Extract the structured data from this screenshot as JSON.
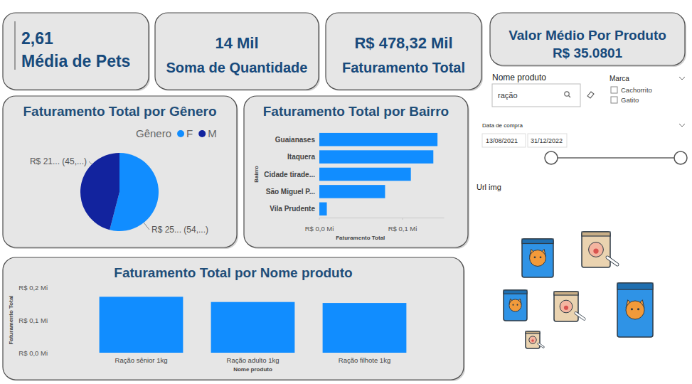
{
  "cards": [
    {
      "value": "2,61",
      "label": "Média de Pets"
    },
    {
      "value": "14 Mil",
      "label": "Soma de Quantidade"
    },
    {
      "value": "R$ 478,32 Mil",
      "label": "Faturamento Total"
    },
    {
      "label": "Valor Médio Por Produto",
      "value": "R$ 35.0801"
    }
  ],
  "slicers": {
    "nome_produto": {
      "title": "Nome produto",
      "search": "ração"
    },
    "marca": {
      "title": "Marca",
      "options": [
        "Cachorrito",
        "Gatito"
      ]
    },
    "data_compra": {
      "title": "Data de compra",
      "start": "13/08/2021",
      "end": "31/12/2022"
    },
    "url_img": {
      "title": "Url img"
    }
  },
  "chart_data": [
    {
      "type": "pie",
      "title": "Faturamento Total por Gênero",
      "legend_title": "Gênero",
      "legend": "top",
      "categories": [
        "F",
        "M"
      ],
      "values": [
        258.5,
        219.82
      ],
      "value_labels": [
        "R$ 25... (54,...)",
        "R$ 21... (45,...)"
      ],
      "colors": [
        "#118DFF",
        "#12239E"
      ],
      "data_labels": true
    },
    {
      "type": "bar",
      "orientation": "horizontal",
      "title": "Faturamento Total por Bairro",
      "x_label": "Faturamento Total",
      "y_label": "Bairro",
      "categories": [
        "Guaianases",
        "Itaquera",
        "Cidade tirade...",
        "São Miguel P...",
        "Vila Prudente"
      ],
      "values": [
        0.142,
        0.137,
        0.11,
        0.079,
        0.009
      ],
      "color": "#118DFF",
      "xlim": [
        0,
        0.15
      ],
      "xticks": [
        {
          "value": 0,
          "label": "R$ 0,0 Mi"
        },
        {
          "value": 0.1,
          "label": "R$ 0,1 Mi"
        }
      ],
      "grid": false
    },
    {
      "type": "bar",
      "title": "Faturamento Total por Nome produto",
      "x_label": "Nome produto",
      "y_label": "Faturamento Total",
      "categories": [
        "Ração sênior 1kg",
        "Ração adulto 1kg",
        "Ração filhote 1kg"
      ],
      "values": [
        0.171,
        0.155,
        0.152
      ],
      "color": "#118DFF",
      "ylim": [
        0,
        0.2
      ],
      "yticks": [
        {
          "value": 0,
          "label": "R$ 0,0 Mi"
        },
        {
          "value": 0.1,
          "label": "R$ 0,1 Mi"
        },
        {
          "value": 0.2,
          "label": "R$ 0,2 Mi"
        }
      ],
      "grid": false
    }
  ]
}
